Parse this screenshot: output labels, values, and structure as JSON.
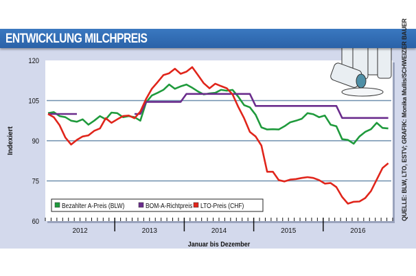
{
  "header": {
    "title": "ENTWICKLUNG MILCHPREIS"
  },
  "source": "QUELLE: BLW, LTO, ESTV; GRAFIK: Monika Mullis/SCHWEIZER BAUER",
  "illustration": "milk-cans-icon",
  "chart_data": {
    "type": "line",
    "title": "ENTWICKLUNG MILCHPREIS",
    "xlabel": "Januar bis Dezember",
    "ylabel": "Indexiert",
    "ylim": [
      60,
      120
    ],
    "yticks": [
      60,
      75,
      90,
      105,
      120
    ],
    "ytick_labels": [
      "60",
      "75",
      "90",
      "105",
      "120"
    ],
    "gridlines": [
      75,
      90,
      105
    ],
    "grid": true,
    "x_resolution": "monthly",
    "years": [
      "2012",
      "2013",
      "2014",
      "2015",
      "2016"
    ],
    "legend_position": "bottom-left",
    "series": [
      {
        "name": "Bezahlter A-Preis (BLW)",
        "color": "#1f9a3c",
        "values": [
          100.3,
          100.7,
          99.2,
          98.8,
          97.5,
          97.1,
          98,
          96,
          97.5,
          99.2,
          98,
          100.5,
          100.3,
          98.8,
          99.2,
          98.8,
          97.5,
          104.3,
          106.9,
          107.9,
          109,
          111,
          109.4,
          110.3,
          111,
          109.8,
          108.4,
          107.3,
          107.7,
          107.9,
          109,
          108.7,
          109,
          106.4,
          103.3,
          102.5,
          99.7,
          95,
          94.2,
          94.3,
          94.2,
          95.4,
          96.9,
          97.5,
          98.2,
          100.3,
          99.9,
          98.8,
          99.4,
          96,
          95.4,
          90.6,
          90.3,
          88.9,
          91.6,
          93.3,
          94.3,
          96.7,
          94.8,
          94.6
        ]
      },
      {
        "name": "BOM-A-Richtpreis",
        "color": "#6a2c8c",
        "values": [
          100,
          100,
          100,
          100,
          100,
          100,
          null,
          null,
          null,
          null,
          null,
          null,
          null,
          null,
          null,
          100,
          100,
          104.5,
          104.5,
          104.5,
          104.5,
          104.5,
          104.5,
          104.5,
          107.5,
          107.5,
          107.5,
          107.5,
          107.5,
          107.5,
          107.5,
          107.5,
          107.5,
          107.5,
          107.5,
          107.5,
          103,
          103,
          103,
          103,
          103,
          103,
          103,
          103,
          103,
          103,
          103,
          103,
          103,
          103,
          103,
          98.5,
          98.5,
          98.5,
          98.5,
          98.5,
          98.5,
          98.5,
          98.5,
          98.5
        ]
      },
      {
        "name": "LTO-Preis (CHF)",
        "color": "#e0251b",
        "values": [
          100,
          98.8,
          95.8,
          91.2,
          88.6,
          90.3,
          91.6,
          92,
          93.7,
          94.6,
          98.4,
          96.7,
          98,
          99.2,
          99.4,
          98.4,
          100.9,
          105.6,
          109.4,
          111.9,
          114.5,
          115.2,
          116.9,
          115,
          115.8,
          117.5,
          114.5,
          111.5,
          109.6,
          111.3,
          110.4,
          109.6,
          107.3,
          102.6,
          98.4,
          93.3,
          91.6,
          88.2,
          78.4,
          78.4,
          75.3,
          74.8,
          75.5,
          75.7,
          76.1,
          76.4,
          76.1,
          75.3,
          74,
          74.2,
          72.7,
          69,
          66.5,
          67.2,
          67.3,
          68.6,
          71.2,
          75.5,
          79.8,
          81.6
        ]
      }
    ]
  }
}
